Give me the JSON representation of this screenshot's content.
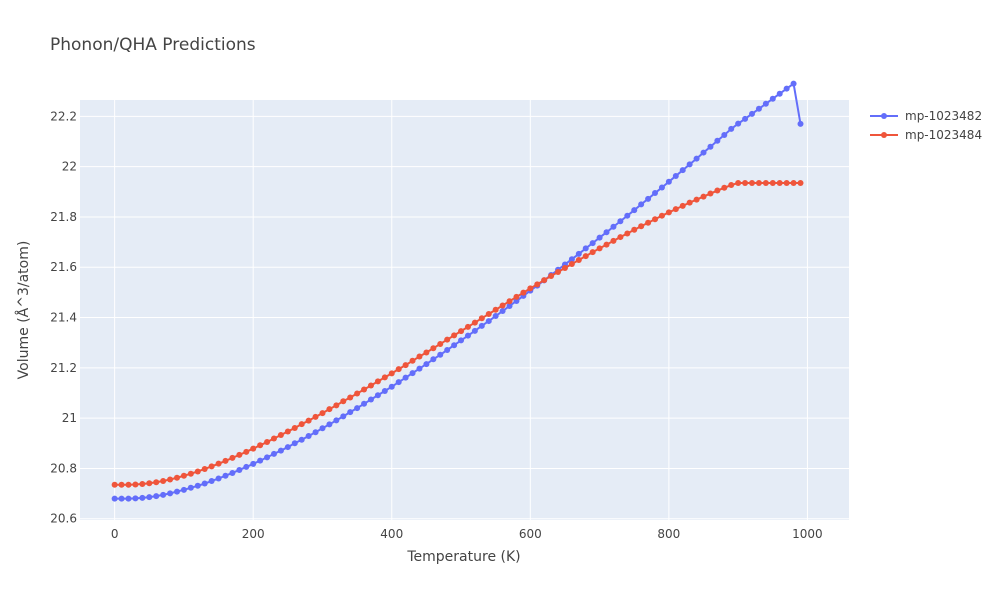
{
  "chart_data": {
    "type": "line",
    "title": "Phonon/QHA Predictions",
    "xlabel": "Temperature (K)",
    "ylabel": "Volume (Å^3/atom)",
    "xlim": [
      -50,
      1060
    ],
    "ylim": [
      20.595,
      22.265
    ],
    "xticks": [
      0,
      200,
      400,
      600,
      800,
      1000
    ],
    "xtick_labels": [
      "0",
      "200",
      "400",
      "600",
      "800",
      "1000"
    ],
    "yticks": [
      20.6,
      20.8,
      21,
      21.2,
      21.4,
      21.6,
      21.8,
      22,
      22.2
    ],
    "ytick_labels": [
      "20.6",
      "20.8",
      "21",
      "21.2",
      "21.4",
      "21.6",
      "21.8",
      "22",
      "22.2"
    ],
    "grid": true,
    "legend_position": "top-right",
    "x": [
      0,
      10,
      20,
      30,
      40,
      50,
      60,
      70,
      80,
      90,
      100,
      110,
      120,
      130,
      140,
      150,
      160,
      170,
      180,
      190,
      200,
      210,
      220,
      230,
      240,
      250,
      260,
      270,
      280,
      290,
      300,
      310,
      320,
      330,
      340,
      350,
      360,
      370,
      380,
      390,
      400,
      410,
      420,
      430,
      440,
      450,
      460,
      470,
      480,
      490,
      500,
      510,
      520,
      530,
      540,
      550,
      560,
      570,
      580,
      590,
      600,
      610,
      620,
      630,
      640,
      650,
      660,
      670,
      680,
      690,
      700,
      710,
      720,
      730,
      740,
      750,
      760,
      770,
      780,
      790,
      800,
      810,
      820,
      830,
      840,
      850,
      860,
      870,
      880,
      890,
      900,
      910,
      920,
      930,
      940,
      950,
      960,
      970,
      980,
      990
    ],
    "series": [
      {
        "name": "mp-1023482",
        "color": "#636efa",
        "values": [
          20.68,
          20.68,
          20.68,
          20.681,
          20.683,
          20.686,
          20.69,
          20.695,
          20.701,
          20.708,
          20.715,
          20.723,
          20.731,
          20.74,
          20.75,
          20.76,
          20.771,
          20.782,
          20.794,
          20.806,
          20.818,
          20.831,
          20.844,
          20.858,
          20.871,
          20.885,
          20.9,
          20.914,
          20.929,
          20.944,
          20.96,
          20.975,
          20.991,
          21.007,
          21.024,
          21.04,
          21.057,
          21.074,
          21.091,
          21.108,
          21.125,
          21.143,
          21.161,
          21.179,
          21.197,
          21.215,
          21.234,
          21.252,
          21.271,
          21.29,
          21.309,
          21.328,
          21.347,
          21.367,
          21.386,
          21.406,
          21.426,
          21.446,
          21.466,
          21.486,
          21.507,
          21.527,
          21.548,
          21.569,
          21.59,
          21.611,
          21.632,
          21.653,
          21.675,
          21.696,
          21.718,
          21.739,
          21.761,
          21.783,
          21.805,
          21.827,
          21.85,
          21.872,
          21.895,
          21.917,
          21.94,
          21.963,
          21.986,
          22.009,
          22.032,
          22.056,
          22.079,
          22.103,
          22.126,
          22.15,
          22.171,
          22.19,
          22.21,
          22.23,
          22.25,
          22.27,
          22.29,
          22.31,
          22.33,
          22.17
        ]
      },
      {
        "name": "mp-1023484",
        "color": "#ef553b",
        "values": [
          20.735,
          20.735,
          20.735,
          20.736,
          20.738,
          20.741,
          20.745,
          20.75,
          20.756,
          20.763,
          20.771,
          20.779,
          20.788,
          20.798,
          20.808,
          20.819,
          20.83,
          20.842,
          20.854,
          20.866,
          20.879,
          20.892,
          20.905,
          20.919,
          20.933,
          20.947,
          20.961,
          20.976,
          20.99,
          21.005,
          21.02,
          21.036,
          21.051,
          21.067,
          21.082,
          21.098,
          21.114,
          21.13,
          21.146,
          21.162,
          21.178,
          21.195,
          21.211,
          21.228,
          21.245,
          21.261,
          21.278,
          21.295,
          21.312,
          21.329,
          21.346,
          21.363,
          21.38,
          21.397,
          21.414,
          21.431,
          21.448,
          21.465,
          21.482,
          21.499,
          21.516,
          21.532,
          21.549,
          21.565,
          21.581,
          21.597,
          21.613,
          21.629,
          21.644,
          21.66,
          21.675,
          21.69,
          21.705,
          21.72,
          21.734,
          21.749,
          21.763,
          21.777,
          21.791,
          21.805,
          21.818,
          21.831,
          21.844,
          21.857,
          21.869,
          21.881,
          21.893,
          21.905,
          21.916,
          21.927,
          21.935,
          21.935,
          21.935,
          21.935,
          21.935,
          21.935,
          21.935,
          21.935,
          21.935,
          21.935
        ]
      }
    ]
  }
}
